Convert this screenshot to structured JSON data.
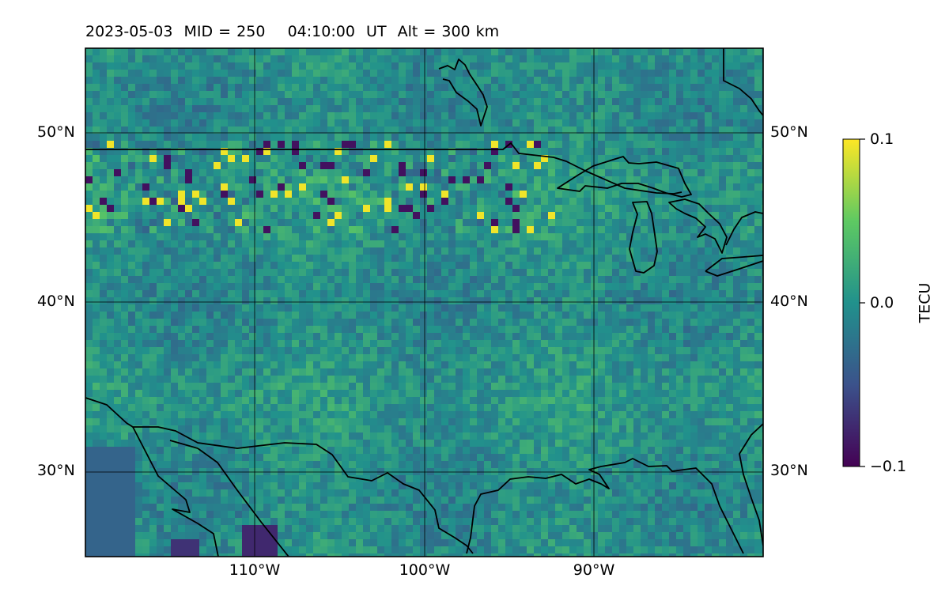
{
  "title": {
    "date": "2023-05-03",
    "mid_label": "MID = 250",
    "time": "04:10:00",
    "time_unit": "UT",
    "alt_label": "Alt = 300 km"
  },
  "map": {
    "lat_labels": [
      "50°N",
      "40°N",
      "30°N"
    ],
    "lon_labels": [
      "110°W",
      "100°W",
      "90°W"
    ],
    "lat_range": [
      25,
      55
    ],
    "lon_range": [
      -120,
      -80
    ],
    "gridlines": true,
    "coastlines": true,
    "field": "TEC perturbation map over North America"
  },
  "colorbar": {
    "label": "TECU",
    "colormap": "viridis",
    "ticks": [
      "0.1",
      "0.0",
      "−0.1"
    ],
    "range": [
      -0.1,
      0.1
    ],
    "colors": {
      "low": "#440154",
      "mid": "#21918c",
      "high": "#fde725"
    }
  }
}
